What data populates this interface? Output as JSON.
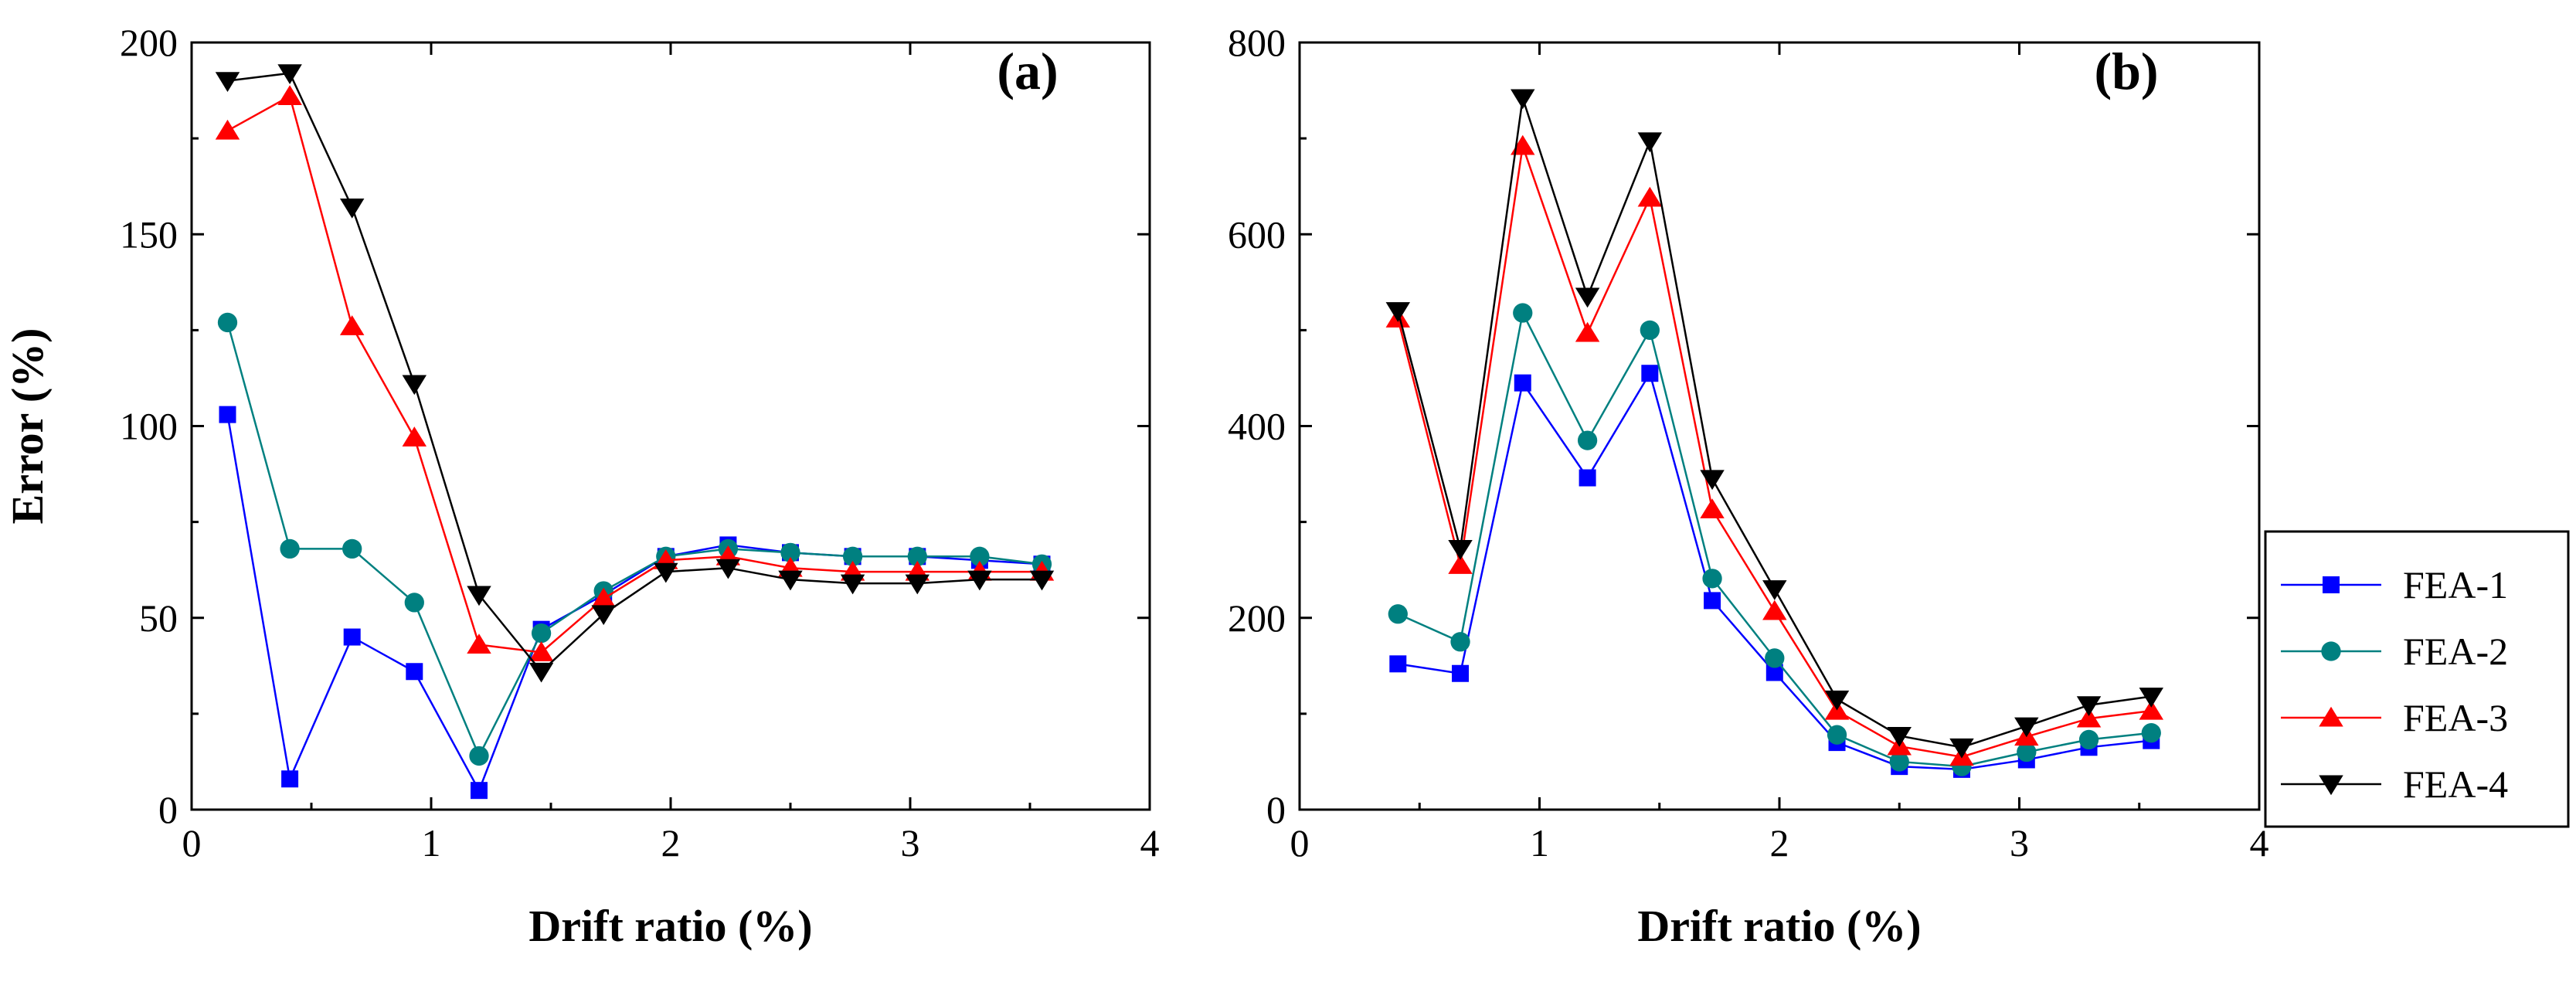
{
  "chart_data": [
    {
      "type": "line",
      "panel_label": "(a)",
      "xlabel": "Drift ratio (%)",
      "ylabel": "Error (%)",
      "xlim": [
        0,
        4
      ],
      "ylim": [
        0,
        200
      ],
      "xticks": [
        0,
        1,
        2,
        3,
        4
      ],
      "yticks": [
        0,
        50,
        100,
        150,
        200
      ],
      "x": [
        0.15,
        0.41,
        0.67,
        0.93,
        1.2,
        1.46,
        1.72,
        1.98,
        2.24,
        2.5,
        2.76,
        3.03,
        3.29,
        3.55
      ],
      "series": [
        {
          "name": "FEA-1",
          "color": "#0000ff",
          "marker": "square",
          "values": [
            103,
            8,
            45,
            36,
            5,
            47,
            56,
            66,
            69,
            67,
            66,
            66,
            65,
            64
          ]
        },
        {
          "name": "FEA-2",
          "color": "#008080",
          "marker": "circle",
          "values": [
            127,
            68,
            68,
            54,
            14,
            46,
            57,
            66,
            68,
            67,
            66,
            66,
            66,
            64
          ]
        },
        {
          "name": "FEA-3",
          "color": "#ff0000",
          "marker": "triangle-up",
          "values": [
            177,
            186,
            126,
            97,
            43,
            41,
            55,
            65,
            66,
            63,
            62,
            62,
            62,
            62
          ]
        },
        {
          "name": "FEA-4",
          "color": "#000000",
          "marker": "triangle-down",
          "values": [
            190,
            192,
            157,
            111,
            56,
            36,
            51,
            62,
            63,
            60,
            59,
            59,
            60,
            60
          ]
        }
      ]
    },
    {
      "type": "line",
      "panel_label": "(b)",
      "xlabel": "Drift ratio (%)",
      "ylabel": "",
      "xlim": [
        0,
        4
      ],
      "ylim": [
        0,
        800
      ],
      "xticks": [
        0,
        1,
        2,
        3,
        4
      ],
      "yticks": [
        0,
        200,
        400,
        600,
        800
      ],
      "x": [
        0.41,
        0.67,
        0.93,
        1.2,
        1.46,
        1.72,
        1.98,
        2.24,
        2.5,
        2.76,
        3.03,
        3.29,
        3.55
      ],
      "series": [
        {
          "name": "FEA-1",
          "color": "#0000ff",
          "marker": "square",
          "values": [
            152,
            142,
            445,
            346,
            455,
            218,
            143,
            70,
            45,
            42,
            52,
            65,
            72
          ]
        },
        {
          "name": "FEA-2",
          "color": "#008080",
          "marker": "circle",
          "values": [
            204,
            175,
            518,
            385,
            500,
            241,
            158,
            78,
            50,
            45,
            60,
            73,
            80
          ]
        },
        {
          "name": "FEA-3",
          "color": "#ff0000",
          "marker": "triangle-up",
          "values": [
            512,
            255,
            692,
            497,
            638,
            313,
            207,
            103,
            66,
            55,
            76,
            95,
            103
          ]
        },
        {
          "name": "FEA-4",
          "color": "#000000",
          "marker": "triangle-down",
          "values": [
            520,
            272,
            742,
            535,
            697,
            345,
            230,
            115,
            77,
            65,
            87,
            109,
            118
          ]
        }
      ]
    }
  ],
  "legend": {
    "position": "right",
    "entries": [
      "FEA-1",
      "FEA-2",
      "FEA-3",
      "FEA-4"
    ]
  }
}
